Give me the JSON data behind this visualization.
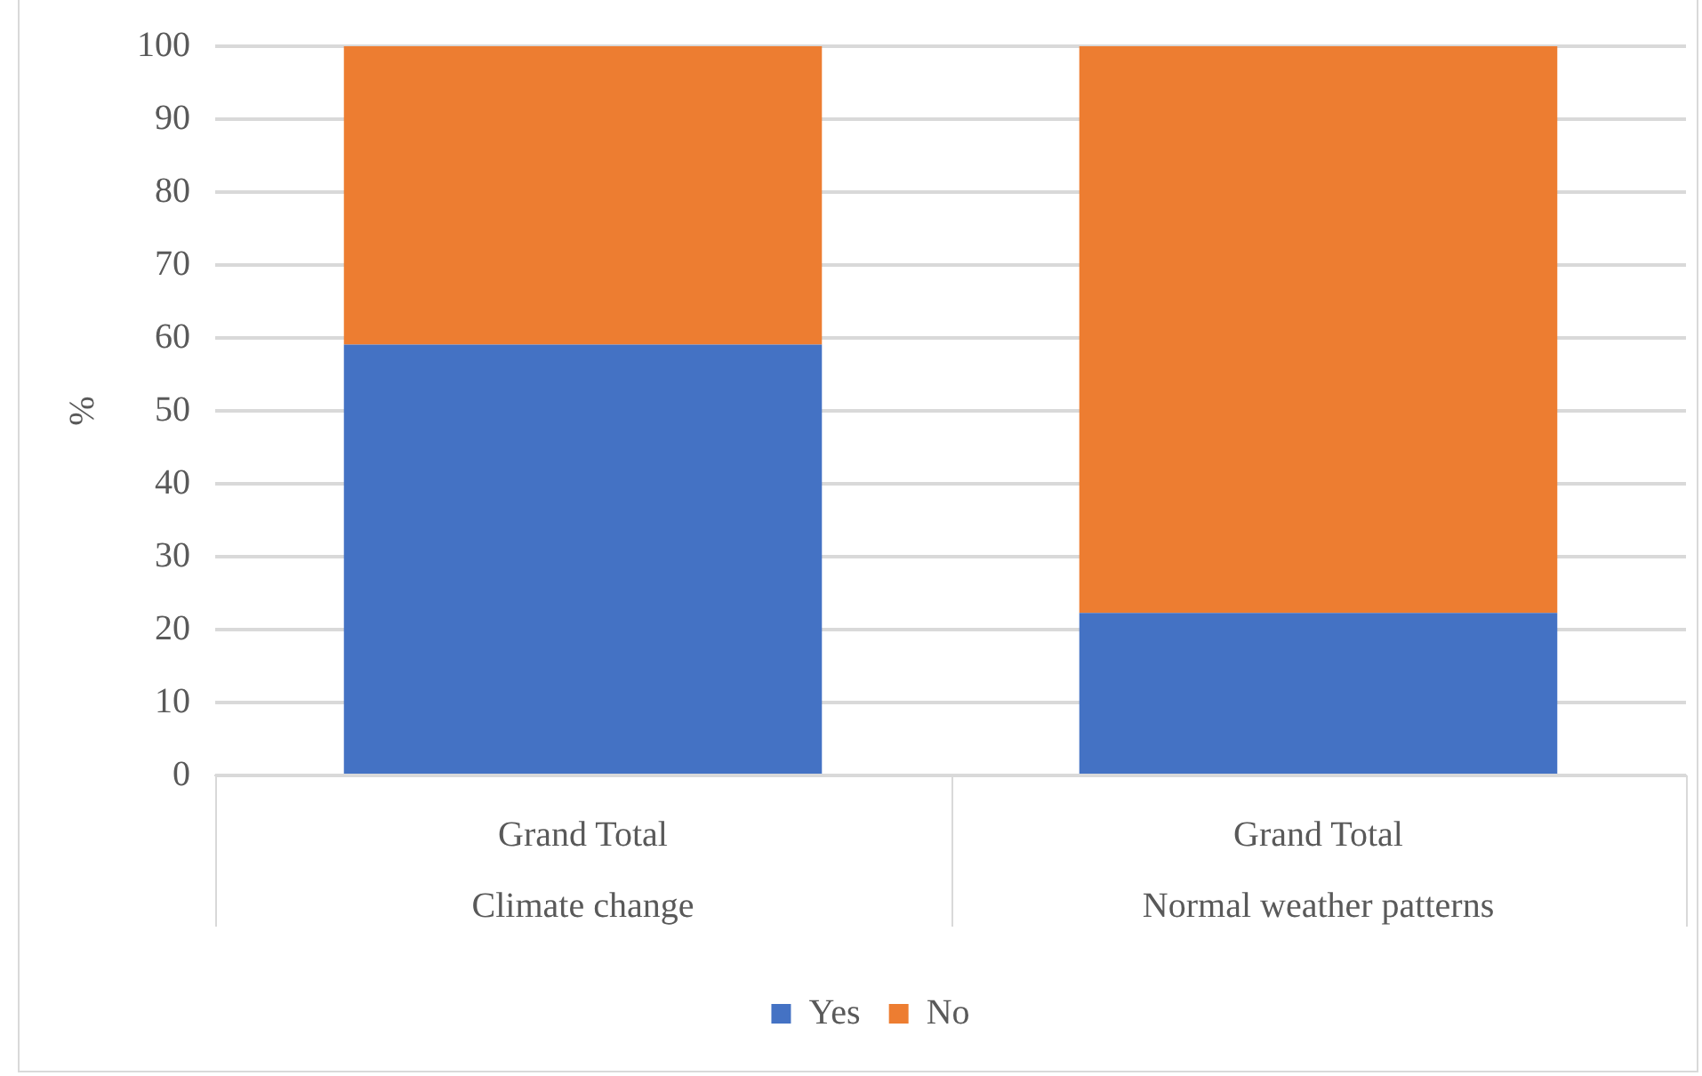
{
  "chart_data": {
    "type": "bar",
    "stacked": true,
    "ylabel": "%",
    "categories": [
      "Grand Total\nClimate change",
      "Grand Total\nNormal weather patterns"
    ],
    "series": [
      {
        "name": "Yes",
        "color": "#4472c4",
        "values": [
          59.1,
          22.3
        ]
      },
      {
        "name": "No",
        "color": "#ed7d31",
        "values": [
          40.9,
          77.7
        ]
      }
    ],
    "ylim": [
      0,
      100
    ],
    "yticks": [
      0,
      10,
      20,
      30,
      40,
      50,
      60,
      70,
      80,
      90,
      100
    ],
    "grid": "y",
    "legend": "bottom"
  }
}
